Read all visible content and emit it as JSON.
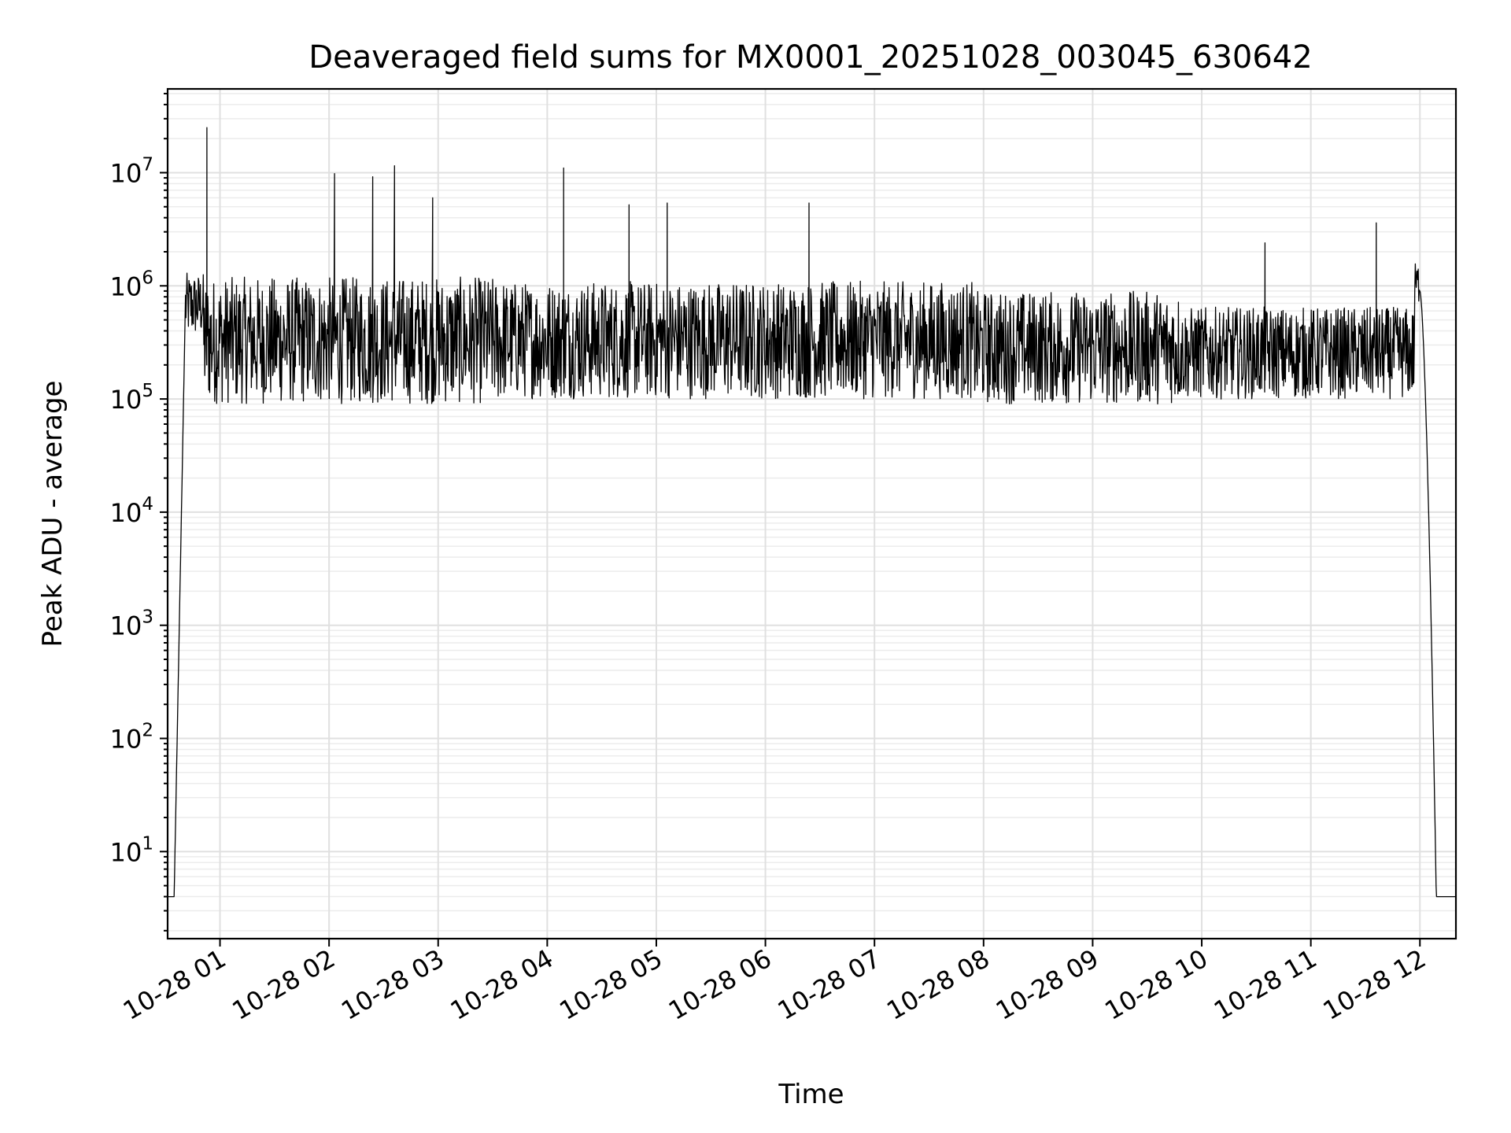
{
  "chart_data": {
    "type": "line",
    "title": "Deaveraged field sums for MX0001_20251028_003045_630642",
    "xlabel": "Time",
    "ylabel": "Peak ADU - average",
    "yscale": "log",
    "ylim": [
      1.7,
      55000000
    ],
    "xlim_hours": [
      0.52,
      12.33
    ],
    "grid": true,
    "x_tick_labels": [
      "10-28 01",
      "10-28 02",
      "10-28 03",
      "10-28 04",
      "10-28 05",
      "10-28 06",
      "10-28 07",
      "10-28 08",
      "10-28 09",
      "10-28 10",
      "10-28 11",
      "10-28 12"
    ],
    "x_tick_hours": [
      1,
      2,
      3,
      4,
      5,
      6,
      7,
      8,
      9,
      10,
      11,
      12
    ],
    "y_tick_exponents": [
      1,
      2,
      3,
      4,
      5,
      6,
      7
    ],
    "y_tick_base": "10",
    "series": [
      {
        "name": "Peak ADU - average",
        "color": "#000000",
        "description_points": {
          "start_hour": 0.52,
          "end_hour": 12.33,
          "baseline_value": 4,
          "ramp_up_end_hour": 0.68,
          "ramp_down_start_hour": 12.0,
          "ramp_down_end_hour": 12.15
        },
        "spikes": [
          {
            "hour": 0.88,
            "value": 25000000
          },
          {
            "hour": 2.05,
            "value": 9800000
          },
          {
            "hour": 2.4,
            "value": 9200000
          },
          {
            "hour": 2.6,
            "value": 11500000
          },
          {
            "hour": 2.95,
            "value": 6000000
          },
          {
            "hour": 4.15,
            "value": 11000000
          },
          {
            "hour": 4.75,
            "value": 5200000
          },
          {
            "hour": 5.1,
            "value": 5400000
          },
          {
            "hour": 6.4,
            "value": 5400000
          },
          {
            "hour": 10.58,
            "value": 2400000
          },
          {
            "hour": 11.6,
            "value": 3600000
          }
        ],
        "band_segments": [
          {
            "from_hour": 0.62,
            "to_hour": 0.85,
            "low": 350000,
            "high": 1300000
          },
          {
            "from_hour": 0.85,
            "to_hour": 3.6,
            "low": 90000,
            "high": 1200000
          },
          {
            "from_hour": 3.6,
            "to_hour": 7.9,
            "low": 100000,
            "high": 1100000
          },
          {
            "from_hour": 7.9,
            "to_hour": 9.8,
            "low": 90000,
            "high": 900000
          },
          {
            "from_hour": 9.8,
            "to_hour": 11.95,
            "low": 100000,
            "high": 650000
          },
          {
            "from_hour": 11.95,
            "to_hour": 12.05,
            "low": 700000,
            "high": 1600000
          }
        ]
      }
    ]
  }
}
